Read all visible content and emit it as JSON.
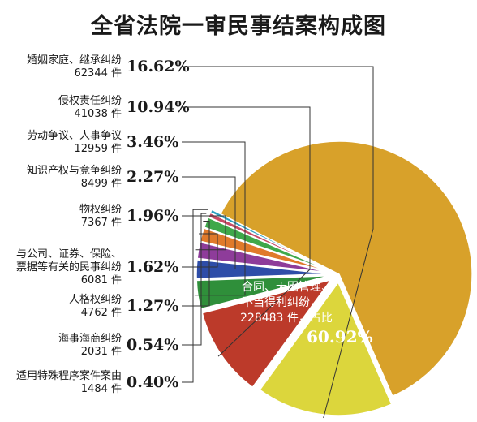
{
  "chart_data": {
    "type": "pie",
    "title": "全省法院一审民事结案构成图",
    "slices": [
      {
        "label_lines": [
          "合同、无因管理、",
          "不当得利纠纷，",
          "228483 件，占比"
        ],
        "count": "228483 件",
        "percent_text": "60.92%",
        "value": 60.92,
        "color": "#D8A12A"
      },
      {
        "label_lines": [
          "婚姻家庭、继承纠纷"
        ],
        "count": "62344 件",
        "percent_text": "16.62%",
        "value": 16.62,
        "color": "#DCD63C"
      },
      {
        "label_lines": [
          "侵权责任纠纷"
        ],
        "count": "41038 件",
        "percent_text": "10.94%",
        "value": 10.94,
        "color": "#BC3A2A"
      },
      {
        "label_lines": [
          "劳动争议、人事争议"
        ],
        "count": "12959 件",
        "percent_text": "3.46%",
        "value": 3.46,
        "color": "#2F8F3A"
      },
      {
        "label_lines": [
          "知识产权与竞争纠纷"
        ],
        "count": "8499 件",
        "percent_text": "2.27%",
        "value": 2.27,
        "color": "#2E4DA8"
      },
      {
        "label_lines": [
          "物权纠纷"
        ],
        "count": "7367 件",
        "percent_text": "1.96%",
        "value": 1.96,
        "color": "#8E3C9A"
      },
      {
        "label_lines": [
          "与公司、证券、保险、",
          "票据等有关的民事纠纷"
        ],
        "count": "6081 件",
        "percent_text": "1.62%",
        "value": 1.62,
        "color": "#E07A2A"
      },
      {
        "label_lines": [
          "人格权纠纷"
        ],
        "count": "4762 件",
        "percent_text": "1.27%",
        "value": 1.27,
        "color": "#3FA84A"
      },
      {
        "label_lines": [
          "海事海商纠纷"
        ],
        "count": "2031 件",
        "percent_text": "0.54%",
        "value": 0.54,
        "color": "#C84A64"
      },
      {
        "label_lines": [
          "适用特殊程序案件案由"
        ],
        "count": "1484 件",
        "percent_text": "0.40%",
        "value": 0.4,
        "color": "#2A9FC0"
      }
    ]
  }
}
